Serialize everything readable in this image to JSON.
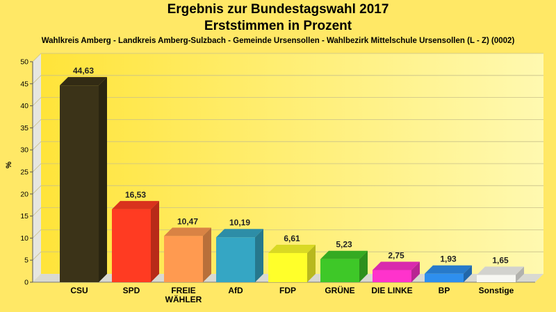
{
  "chart_data": {
    "type": "bar",
    "title": "Ergebnis zur Bundestagswahl 2017",
    "title_line2": "Erststimmen in Prozent",
    "subtitle": "Wahlkreis Amberg - Landkreis Amberg-Sulzbach - Gemeinde Ursensollen - Wahlbezirk Mittelschule Ursensollen (L - Z) (0002)",
    "xlabel": "",
    "ylabel": "%",
    "ylim": [
      0,
      50
    ],
    "yticks": [
      "0",
      "5",
      "10",
      "15",
      "20",
      "25",
      "30",
      "35",
      "40",
      "45",
      "50"
    ],
    "grid": true,
    "categories": [
      "CSU",
      "SPD",
      "FREIE WÄHLER",
      "AfD",
      "FDP",
      "GRÜNE",
      "DIE LINKE",
      "BP",
      "Sonstige"
    ],
    "category_lines": [
      [
        "CSU"
      ],
      [
        "SPD"
      ],
      [
        "FREIE",
        "WÄHLER"
      ],
      [
        "AfD"
      ],
      [
        "FDP"
      ],
      [
        "GRÜNE"
      ],
      [
        "DIE LINKE"
      ],
      [
        "BP"
      ],
      [
        "Sonstige"
      ]
    ],
    "values": [
      44.63,
      16.53,
      10.47,
      10.19,
      6.61,
      5.23,
      2.75,
      1.93,
      1.65
    ],
    "value_labels": [
      "44,63",
      "16,53",
      "10,47",
      "10,19",
      "6,61",
      "5,23",
      "2,75",
      "1,93",
      "1,65"
    ],
    "colors": [
      "#3b3318",
      "#ff3b22",
      "#ff9a50",
      "#35a6c4",
      "#ffff2a",
      "#3ec828",
      "#ff33cc",
      "#2e8fee",
      "#f7f7f2"
    ]
  }
}
